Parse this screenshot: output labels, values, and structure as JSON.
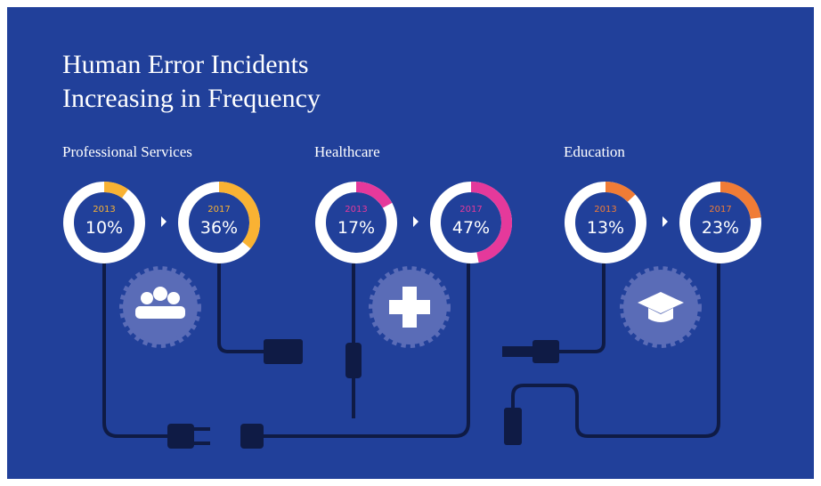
{
  "title_lines": [
    "Human Error Incidents",
    "Increasing in Frequency"
  ],
  "chart_data": [
    {
      "type": "donut",
      "title": "Professional Services",
      "color": "#f9b233",
      "categories": [
        "2013",
        "2017"
      ],
      "values": [
        10,
        36
      ],
      "value_labels": [
        "10%",
        "36%"
      ]
    },
    {
      "type": "donut",
      "title": "Healthcare",
      "color": "#e5399b",
      "categories": [
        "2013",
        "2017"
      ],
      "values": [
        17,
        47
      ],
      "value_labels": [
        "17%",
        "47%"
      ]
    },
    {
      "type": "donut",
      "title": "Education",
      "color": "#f07c36",
      "categories": [
        "2013",
        "2017"
      ],
      "values": [
        13,
        23
      ],
      "value_labels": [
        "13%",
        "23%"
      ]
    }
  ]
}
